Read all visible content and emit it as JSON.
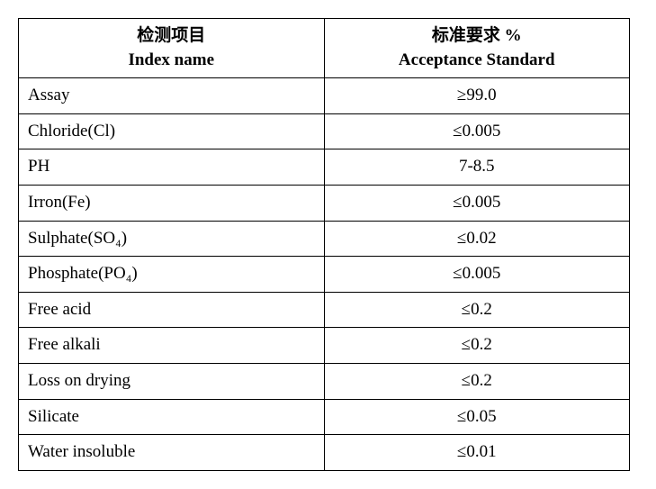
{
  "table": {
    "header": {
      "col1_cn": "检测项目",
      "col1_en": "Index name",
      "col2_cn": "标准要求  %",
      "col2_en": "Acceptance Standard"
    },
    "rows": [
      {
        "index": "Assay",
        "value": "≥99.0"
      },
      {
        "index": "Chloride(Cl)",
        "value": "≤0.005"
      },
      {
        "index": "PH",
        "value": "7-8.5"
      },
      {
        "index": "Irron(Fe)",
        "value": "≤0.005"
      },
      {
        "index": "Sulphate(SO₄)",
        "value": "≤0.02"
      },
      {
        "index": "Phosphate(PO₄)",
        "value": "≤0.005"
      },
      {
        "index": "Free acid",
        "value": "≤0.2"
      },
      {
        "index": "Free alkali",
        "value": "≤0.2"
      },
      {
        "index": "Loss on drying",
        "value": "≤0.2"
      },
      {
        "index": "Silicate",
        "value": "≤0.05"
      },
      {
        "index": "Water insoluble",
        "value": "≤0.01"
      }
    ],
    "border_color": "#000000",
    "background_color": "#ffffff",
    "font_family": "Times New Roman",
    "header_fontsize": 19,
    "cell_fontsize": 19
  }
}
